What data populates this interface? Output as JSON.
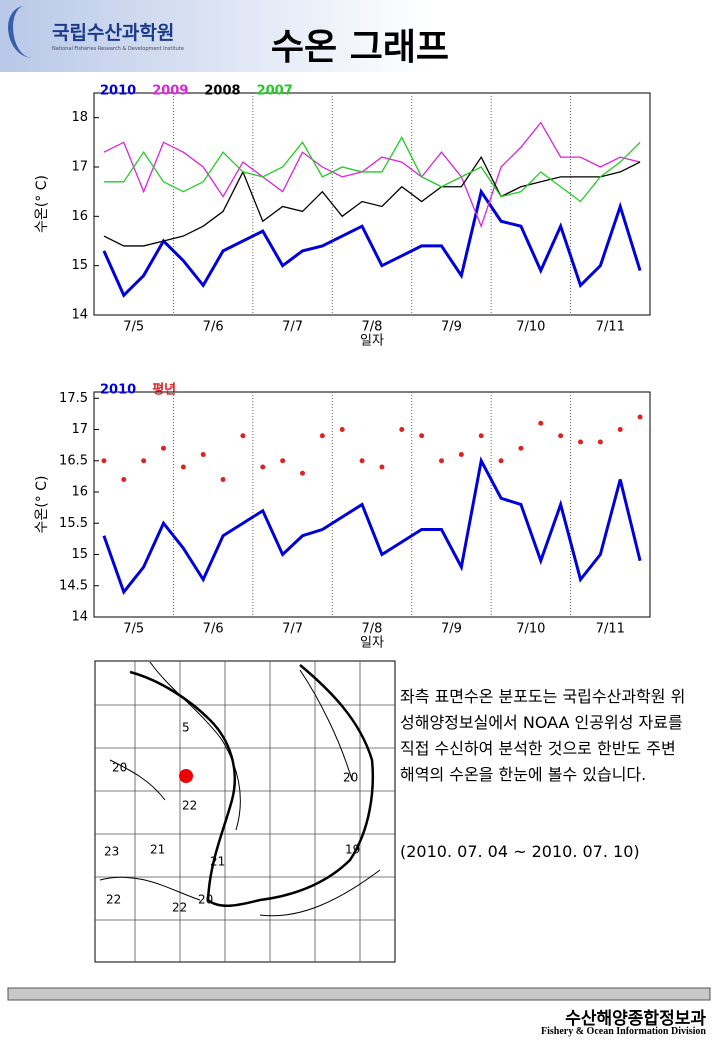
{
  "header": {
    "org": "국립수산과학원",
    "org_en": "National Fisheries Research & Development Institute",
    "title": "수온 그래프"
  },
  "chart_data": [
    {
      "type": "line",
      "ylabel": "수온(° C)",
      "xlabel": "일자",
      "categories": [
        null,
        null,
        "7/5",
        null,
        null,
        null,
        "7/6",
        null,
        null,
        null,
        "7/7",
        null,
        null,
        null,
        "7/8",
        null,
        null,
        null,
        "7/9",
        null,
        null,
        null,
        "7/10",
        null,
        null,
        null,
        "7/11",
        null
      ],
      "ylim": [
        14,
        18.5
      ],
      "yticks": [
        14,
        15,
        16,
        17,
        18
      ],
      "legend": "top-left",
      "series": [
        {
          "name": "2010",
          "color": "#0000dd",
          "width": 3,
          "style": "line",
          "values": [
            15.3,
            14.4,
            14.8,
            15.5,
            15.1,
            14.6,
            15.3,
            15.5,
            15.7,
            15.0,
            15.3,
            15.4,
            15.6,
            15.8,
            15.0,
            15.2,
            15.4,
            15.4,
            14.8,
            16.5,
            15.9,
            15.8,
            14.9,
            15.8,
            14.6,
            15.0,
            16.2,
            14.9
          ]
        },
        {
          "name": "2009",
          "color": "#dd22dd",
          "width": 1.3,
          "style": "line",
          "values": [
            17.3,
            17.5,
            16.5,
            17.5,
            17.3,
            17.0,
            16.4,
            17.1,
            16.8,
            16.5,
            17.3,
            17.0,
            16.8,
            16.9,
            17.2,
            17.1,
            16.8,
            17.3,
            16.8,
            15.8,
            17.0,
            17.4,
            17.9,
            17.2,
            17.2,
            17.0,
            17.2,
            17.1
          ]
        },
        {
          "name": "2008",
          "color": "#000000",
          "width": 1.3,
          "style": "line",
          "values": [
            15.6,
            15.4,
            15.4,
            15.5,
            15.6,
            15.8,
            16.1,
            16.9,
            15.9,
            16.2,
            16.1,
            16.5,
            16.0,
            16.3,
            16.2,
            16.6,
            16.3,
            16.6,
            16.6,
            17.2,
            16.4,
            16.6,
            16.7,
            16.8,
            16.8,
            16.8,
            16.9,
            17.1
          ]
        },
        {
          "name": "2007",
          "color": "#22cc22",
          "width": 1.3,
          "style": "line",
          "values": [
            16.7,
            16.7,
            17.3,
            16.7,
            16.5,
            16.7,
            17.3,
            16.9,
            16.8,
            17.0,
            17.5,
            16.8,
            17.0,
            16.9,
            16.9,
            17.6,
            16.8,
            16.6,
            16.8,
            17.0,
            16.4,
            16.5,
            16.9,
            16.6,
            16.3,
            16.8,
            17.1,
            17.5
          ]
        }
      ]
    },
    {
      "type": "line",
      "ylabel": "수온(° C)",
      "xlabel": "일자",
      "categories": [
        null,
        null,
        "7/5",
        null,
        null,
        null,
        "7/6",
        null,
        null,
        null,
        "7/7",
        null,
        null,
        null,
        "7/8",
        null,
        null,
        null,
        "7/9",
        null,
        null,
        null,
        "7/10",
        null,
        null,
        null,
        "7/11",
        null
      ],
      "ylim": [
        14,
        17.6
      ],
      "yticks": [
        14,
        14.5,
        15,
        15.5,
        16,
        16.5,
        17,
        17.5
      ],
      "legend": "top-left",
      "series": [
        {
          "name": "2010",
          "color": "#0000dd",
          "width": 3,
          "style": "line",
          "values": [
            15.3,
            14.4,
            14.8,
            15.5,
            15.1,
            14.6,
            15.3,
            15.5,
            15.7,
            15.0,
            15.3,
            15.4,
            15.6,
            15.8,
            15.0,
            15.2,
            15.4,
            15.4,
            14.8,
            16.5,
            15.9,
            15.8,
            14.9,
            15.8,
            14.6,
            15.0,
            16.2,
            14.9
          ]
        },
        {
          "name": "평년",
          "color": "#dd2222",
          "width": 1,
          "style": "markers",
          "values": [
            16.5,
            16.2,
            16.5,
            16.7,
            16.4,
            16.6,
            16.2,
            16.9,
            16.4,
            16.5,
            16.3,
            16.9,
            17.0,
            16.5,
            16.4,
            17.0,
            16.9,
            16.5,
            16.6,
            16.9,
            16.5,
            16.7,
            17.1,
            16.9,
            16.8,
            16.8,
            17.0,
            17.2
          ]
        }
      ]
    }
  ],
  "map": {
    "labels": [
      "20",
      "21",
      "22",
      "23",
      "22",
      "22",
      "20",
      "21",
      "20",
      "19",
      "5"
    ]
  },
  "description": {
    "text": "좌측 표면수온 분포도는 국립수산과학원 위성해양정보실에서 NOAA 인공위성 자료를 직접 수신하여 분석한 것으로  한반도 주변해역의 수온을 한눈에 볼수 있습니다.",
    "period": "(2010. 07. 04 ~ 2010. 07. 10)"
  },
  "footer": {
    "division": "수산해양종합정보과",
    "division_en": "Fishery & Ocean Information Division"
  }
}
